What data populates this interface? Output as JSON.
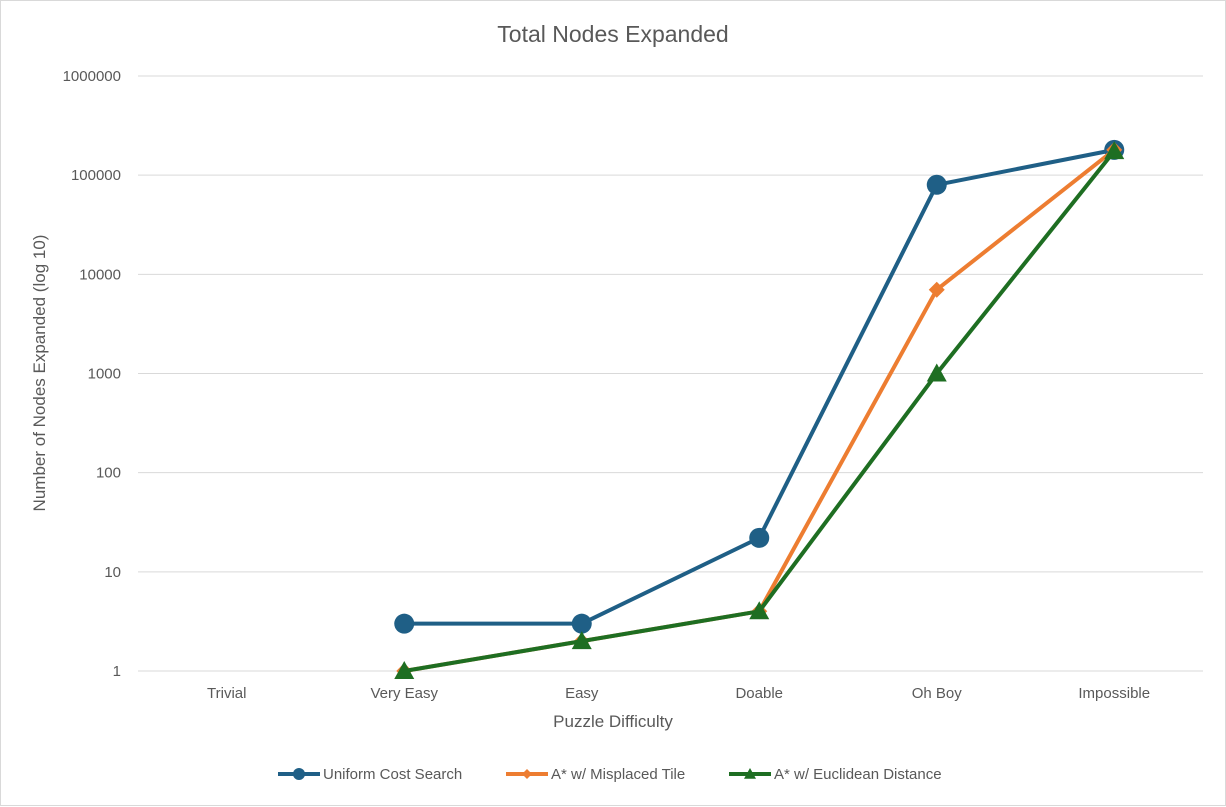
{
  "chart_data": {
    "type": "line",
    "title": "Total Nodes Expanded",
    "xlabel": "Puzzle Difficulty",
    "ylabel": "Number of Nodes Expanded (log 10)",
    "y_scale": "log10",
    "ylim": [
      1,
      1000000
    ],
    "y_ticks": [
      "1",
      "10",
      "100",
      "1000",
      "10000",
      "100000",
      "1000000"
    ],
    "categories": [
      "Trivial",
      "Very Easy",
      "Easy",
      "Doable",
      "Oh Boy",
      "Impossible"
    ],
    "grid": "horizontal",
    "legend_position": "bottom",
    "series": [
      {
        "name": "Uniform Cost Search",
        "color": "#1f5f86",
        "marker": "circle",
        "values": [
          null,
          3,
          3,
          22,
          80000,
          180000
        ]
      },
      {
        "name": "A* w/ Misplaced Tile",
        "color": "#ed7d31",
        "marker": "diamond",
        "values": [
          null,
          1,
          2,
          4,
          7000,
          180000
        ]
      },
      {
        "name": "A* w/ Euclidean Distance",
        "color": "#1e6e22",
        "marker": "triangle",
        "values": [
          null,
          1,
          2,
          4,
          1000,
          175000
        ]
      }
    ]
  }
}
